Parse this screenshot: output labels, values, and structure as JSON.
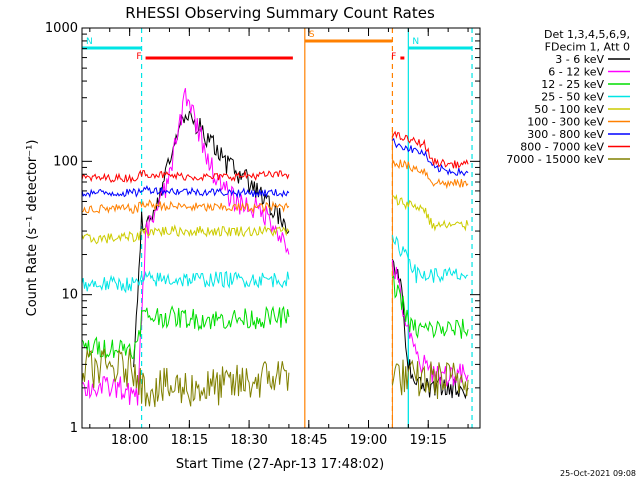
{
  "chart_data": {
    "type": "line",
    "title": "RHESSI Observing Summary Count Rates",
    "xlabel": "Start Time (27-Apr-13 17:48:02)",
    "ylabel": "Count Rate (s⁻¹ detector⁻¹)",
    "y_scale": "log",
    "ylim": [
      1,
      1000
    ],
    "xlim": [
      "17:48:02",
      "19:28:00"
    ],
    "x_ticks": [
      "18:00",
      "18:15",
      "18:30",
      "18:45",
      "19:00",
      "19:15"
    ],
    "y_ticks": [
      "1",
      "10",
      "100",
      "1000"
    ],
    "legend": {
      "placement": "right",
      "header": [
        "Det 1,3,4,5,6,9,",
        "FDecim 1, Att 0"
      ],
      "entries": [
        {
          "label": "3 - 6 keV",
          "color": "#000000"
        },
        {
          "label": "6 - 12 keV",
          "color": "#ff00ff"
        },
        {
          "label": "12 - 25 keV",
          "color": "#00dd00"
        },
        {
          "label": "25 - 50 keV",
          "color": "#00e5e5"
        },
        {
          "label": "50 - 100 keV",
          "color": "#cccc00"
        },
        {
          "label": "100 - 300 keV",
          "color": "#ff8000"
        },
        {
          "label": "300 - 800 keV",
          "color": "#0000ff"
        },
        {
          "label": "800 - 7000 keV",
          "color": "#ff0000"
        },
        {
          "label": "7000 - 15000 keV",
          "color": "#808000"
        }
      ]
    },
    "flags": [
      {
        "label": "N",
        "color": "#00e5e5",
        "start": "17:48",
        "end": "18:03"
      },
      {
        "label": "N",
        "color": "#00e5e5",
        "start": "19:10",
        "end": "19:26"
      },
      {
        "label": "F",
        "color": "#ff0000",
        "start": "18:04",
        "end": "18:41"
      },
      {
        "label": "F",
        "color": "#ff0000",
        "start": "19:08",
        "end": "19:09"
      },
      {
        "label": "S",
        "color": "#ff8000",
        "start": "18:44",
        "end": "19:06"
      }
    ],
    "series": [
      {
        "name": "3 - 6 keV",
        "color": "#000000",
        "x": [
          "18:01",
          "18:03",
          "18:06",
          "18:09",
          "18:12",
          "18:14",
          "18:16",
          "18:19",
          "18:22",
          "18:25",
          "18:28",
          "18:31",
          "18:34",
          "18:37",
          "18:40",
          "19:06",
          "19:08",
          "19:10",
          "19:13",
          "19:18",
          "19:25"
        ],
        "y": [
          3,
          35,
          40,
          80,
          170,
          240,
          200,
          160,
          120,
          90,
          80,
          65,
          50,
          40,
          30,
          20,
          12,
          3,
          2,
          2,
          2
        ]
      },
      {
        "name": "6 - 12 keV",
        "color": "#ff00ff",
        "x": [
          "17:48",
          "17:58",
          "18:02",
          "18:04",
          "18:06",
          "18:09",
          "18:12",
          "18:14",
          "18:16",
          "18:19",
          "18:22",
          "18:25",
          "18:28",
          "18:31",
          "18:34",
          "18:37",
          "18:40",
          "19:06",
          "19:08",
          "19:10",
          "19:13",
          "19:18",
          "19:25"
        ],
        "y": [
          2,
          2,
          1.6,
          28,
          40,
          60,
          150,
          330,
          230,
          120,
          70,
          55,
          48,
          45,
          40,
          32,
          20,
          18,
          10,
          5,
          3,
          2.5,
          2.5
        ]
      },
      {
        "name": "12 - 25 keV",
        "color": "#00dd00",
        "x": [
          "17:48",
          "18:02",
          "18:03",
          "18:10",
          "18:20",
          "18:30",
          "18:40",
          "19:06",
          "19:08",
          "19:10",
          "19:12",
          "19:15",
          "19:20",
          "19:25"
        ],
        "y": [
          4,
          4,
          7,
          6.8,
          6.5,
          6.6,
          6.8,
          12,
          10,
          6,
          5.5,
          5.5,
          5.5,
          5.5
        ]
      },
      {
        "name": "25 - 50 keV",
        "color": "#00e5e5",
        "x": [
          "17:48",
          "18:02",
          "18:03",
          "18:10",
          "18:20",
          "18:30",
          "18:40",
          "19:06",
          "19:10",
          "19:12",
          "19:15",
          "19:20",
          "19:25"
        ],
        "y": [
          12,
          12,
          13,
          13,
          13,
          13,
          13,
          25,
          20,
          14,
          14,
          14,
          14
        ]
      },
      {
        "name": "50 - 100 keV",
        "color": "#cccc00",
        "x": [
          "17:48",
          "18:02",
          "18:03",
          "18:10",
          "18:20",
          "18:30",
          "18:40",
          "19:06",
          "19:10",
          "19:14",
          "19:16",
          "19:20",
          "19:25"
        ],
        "y": [
          26,
          27,
          30,
          30,
          30,
          30,
          30,
          52,
          48,
          44,
          33,
          33,
          33
        ]
      },
      {
        "name": "100 - 300 keV",
        "color": "#ff8000",
        "x": [
          "17:48",
          "18:02",
          "18:03",
          "18:10",
          "18:20",
          "18:30",
          "18:40",
          "19:06",
          "19:10",
          "19:14",
          "19:16",
          "19:20",
          "19:25"
        ],
        "y": [
          44,
          44,
          48,
          46,
          45,
          45,
          46,
          100,
          92,
          85,
          70,
          68,
          68
        ]
      },
      {
        "name": "300 - 800 keV",
        "color": "#0000ff",
        "x": [
          "17:48",
          "18:02",
          "18:03",
          "18:10",
          "18:20",
          "18:30",
          "18:40",
          "19:06",
          "19:10",
          "19:14",
          "19:16",
          "19:20",
          "19:25"
        ],
        "y": [
          58,
          58,
          62,
          60,
          59,
          58,
          58,
          140,
          125,
          115,
          90,
          85,
          82
        ]
      },
      {
        "name": "800 - 7000 keV",
        "color": "#ff0000",
        "x": [
          "17:48",
          "18:02",
          "18:03",
          "18:10",
          "18:20",
          "18:30",
          "18:40",
          "19:06",
          "19:10",
          "19:14",
          "19:16",
          "19:20",
          "19:25"
        ],
        "y": [
          75,
          75,
          82,
          78,
          76,
          78,
          80,
          160,
          145,
          135,
          100,
          95,
          95
        ]
      },
      {
        "name": "7000 - 15000 keV",
        "color": "#808000",
        "x": [
          "17:48",
          "18:02",
          "18:03",
          "18:10",
          "18:20",
          "18:30",
          "18:40",
          "19:06",
          "19:10",
          "19:15",
          "19:20",
          "19:25"
        ],
        "y": [
          2.8,
          2.8,
          2.0,
          2.0,
          2.0,
          2.2,
          2.6,
          2.6,
          2.3,
          2.3,
          2.3,
          2.3
        ]
      }
    ],
    "grid": false
  },
  "footer": {
    "timestamp": "25-Oct-2021 09:08"
  }
}
